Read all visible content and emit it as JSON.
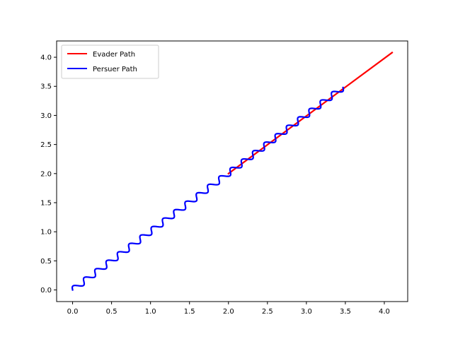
{
  "chart_data": {
    "type": "line",
    "title": "",
    "xlabel": "",
    "ylabel": "",
    "xlim": [
      -0.205,
      4.3
    ],
    "ylim": [
      -0.2,
      4.28
    ],
    "xticks": [
      0.0,
      0.5,
      1.0,
      1.5,
      2.0,
      2.5,
      3.0,
      3.5,
      4.0
    ],
    "xtick_labels": [
      "0.0",
      "0.5",
      "1.0",
      "1.5",
      "2.0",
      "2.5",
      "3.0",
      "3.5",
      "4.0"
    ],
    "yticks": [
      0.0,
      0.5,
      1.0,
      1.5,
      2.0,
      2.5,
      3.0,
      3.5,
      4.0
    ],
    "ytick_labels": [
      "0.0",
      "0.5",
      "1.0",
      "1.5",
      "2.0",
      "2.5",
      "3.0",
      "3.5",
      "4.0"
    ],
    "grid": false,
    "legend_position": "top-left",
    "series": [
      {
        "name": "Evader Path",
        "color": "#ff0000",
        "x": [
          2.0,
          4.1
        ],
        "y": [
          2.0,
          4.08
        ]
      },
      {
        "name": "Persuer Path",
        "color": "#0000ff",
        "pattern": "sinusoidal oscillation around diagonal",
        "x": [
          0.0,
          3.47
        ],
        "y": [
          0.0,
          3.48
        ],
        "oscillation_count": 24,
        "oscillation_amplitude": 0.045
      }
    ]
  }
}
